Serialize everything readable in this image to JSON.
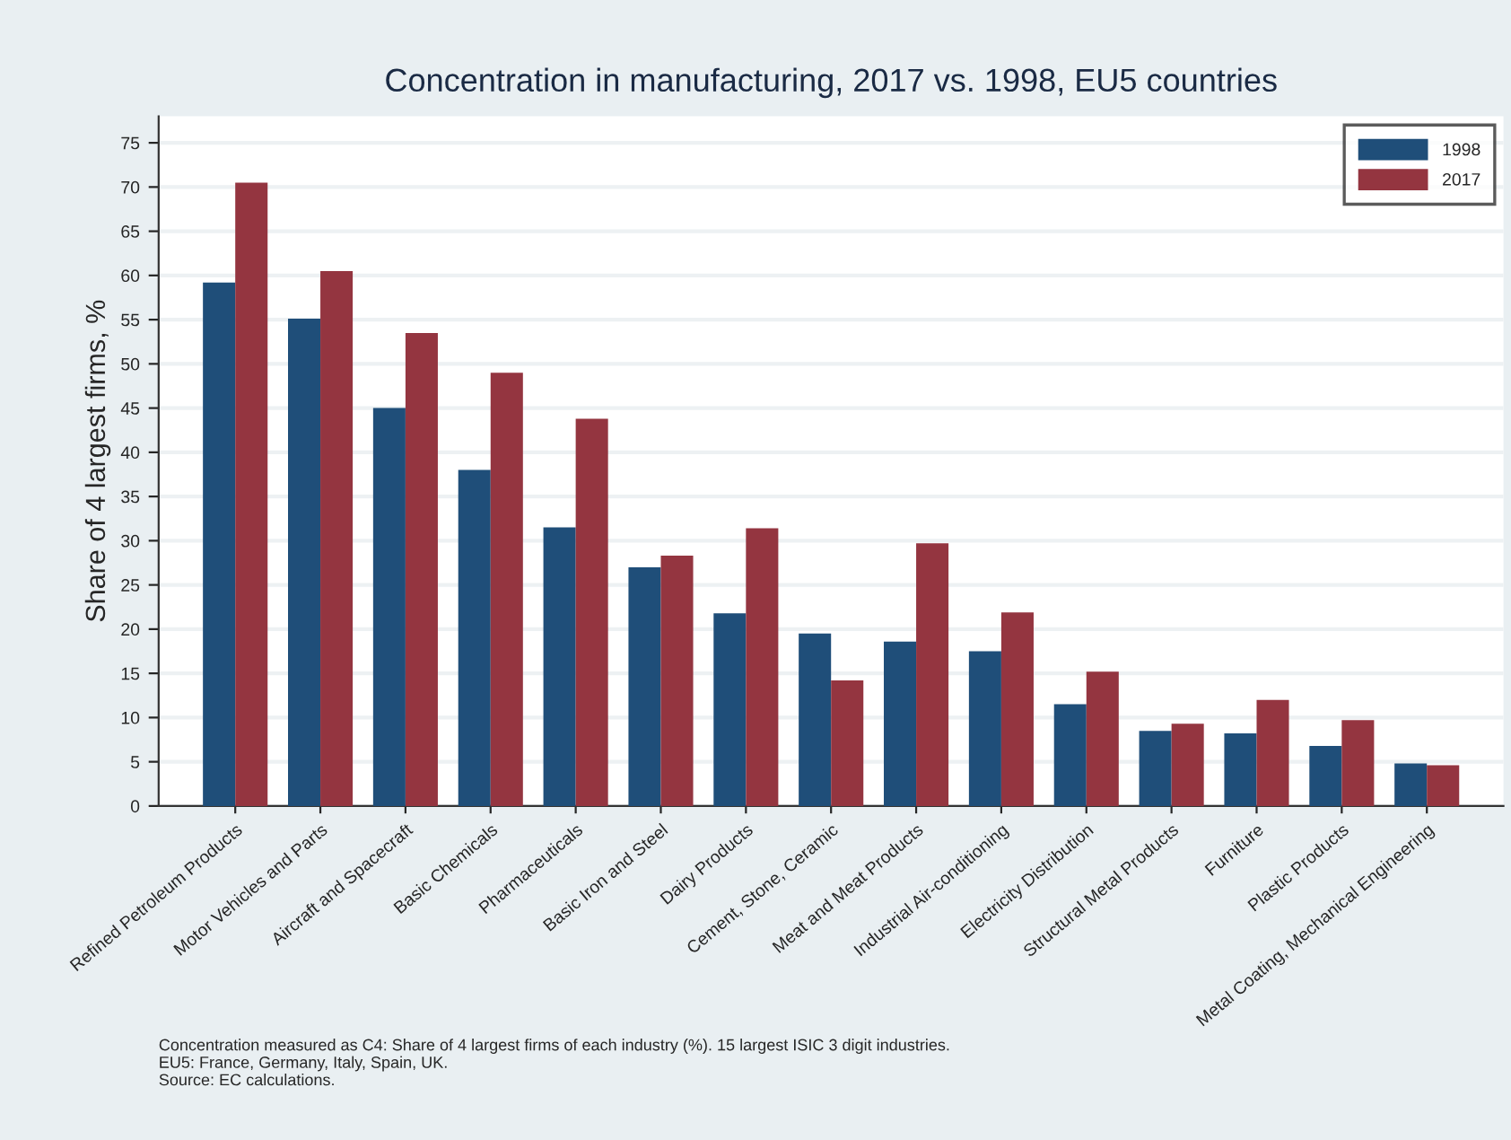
{
  "chart_data": {
    "type": "bar",
    "title": "Concentration in manufacturing, 2017 vs. 1998, EU5 countries",
    "ylabel": "Share of 4 largest firms, %",
    "categories": [
      "Refined Petroleum Products",
      "Motor Vehicles and Parts",
      "Aircraft and Spacecraft",
      "Basic Chemicals",
      "Pharmaceuticals",
      "Basic Iron and Steel",
      "Dairy Products",
      "Cement, Stone, Ceramic",
      "Meat and Meat Products",
      "Industrial Air-conditioning",
      "Electricity Distribution",
      "Structural Metal Products",
      "Furniture",
      "Plastic Products",
      "Metal Coating, Mechanical Engineering"
    ],
    "series": [
      {
        "name": "1998",
        "color": "#1f4e79",
        "values": [
          59.2,
          55.1,
          45,
          38,
          31.5,
          27,
          21.8,
          19.5,
          18.6,
          17.5,
          11.5,
          8.5,
          8.2,
          6.8,
          4.8
        ]
      },
      {
        "name": "2017",
        "color": "#943540",
        "values": [
          70.5,
          60.5,
          53.5,
          49,
          43.8,
          28.3,
          31.4,
          14.2,
          29.7,
          21.9,
          15.2,
          9.3,
          12,
          9.7,
          4.6
        ]
      }
    ],
    "ylim": [
      0,
      78
    ],
    "yticks": [
      0,
      5,
      10,
      15,
      20,
      25,
      30,
      35,
      40,
      45,
      50,
      55,
      60,
      65,
      70,
      75
    ],
    "grid": "y",
    "legend": "top right",
    "annotations": [
      "Concentration measured as C4: Share of 4 largest firms of each industry (%). 15 largest ISIC 3 digit industries.\nEU5: France, Germany, Italy, Spain, UK.\nSource: EC calculations."
    ]
  }
}
